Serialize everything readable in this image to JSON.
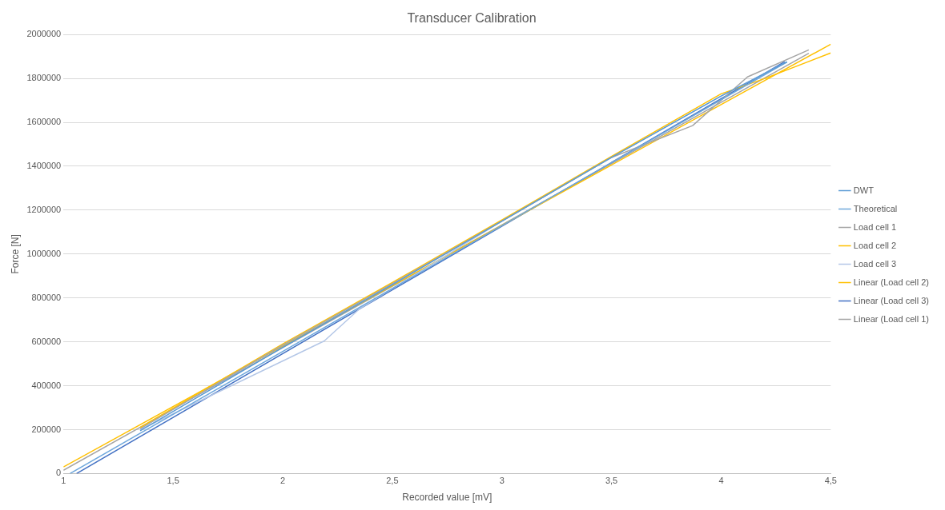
{
  "chart_data": {
    "type": "line",
    "title": "Transducer Calibration",
    "xlabel": "Recorded value [mV]",
    "ylabel": "Force [N]",
    "xlim": [
      1,
      4.5
    ],
    "xticks": [
      1,
      {
        "value": 1.5,
        "label": "1,5"
      },
      2,
      {
        "value": 2.5,
        "label": "2,5"
      },
      3,
      {
        "value": 3.5,
        "label": "3,5"
      },
      4,
      {
        "value": 4.5,
        "label": "4,5"
      }
    ],
    "ylim": [
      0,
      2000000
    ],
    "yticks": [
      0,
      200000,
      400000,
      600000,
      800000,
      1000000,
      1200000,
      1400000,
      1600000,
      1800000,
      2000000
    ],
    "grid": "y",
    "legend": "right",
    "marker": "none",
    "line_style": "solid",
    "series": [
      {
        "name": "DWT",
        "color": "#5b9bd5",
        "x": [
          1.35,
          2.0,
          2.5,
          3.0,
          3.5,
          4.0,
          4.3
        ],
        "values": [
          195000,
          575000,
          860000,
          1150000,
          1440000,
          1720000,
          1875000
        ]
      },
      {
        "name": "Theoretical",
        "color": "#6fa8dc",
        "x": [
          1.03,
          4.3
        ],
        "values": [
          0,
          1875000
        ]
      },
      {
        "name": "Load cell 1",
        "color": "#a5a5a5",
        "x": [
          1.35,
          2.0,
          2.5,
          3.0,
          3.5,
          3.87,
          4.12,
          4.4
        ],
        "values": [
          204000,
          585000,
          865000,
          1150000,
          1440000,
          1585000,
          1807000,
          1930000
        ]
      },
      {
        "name": "Load cell 2",
        "color": "#ffc000",
        "x": [
          1.35,
          2.0,
          2.5,
          3.0,
          3.5,
          4.0,
          4.2,
          4.5
        ],
        "values": [
          210000,
          590000,
          870000,
          1155000,
          1445000,
          1730000,
          1800000,
          1916000
        ]
      },
      {
        "name": "Load cell 3",
        "color": "#b4c7e7",
        "x": [
          1.35,
          2.19,
          2.35,
          3.0,
          3.5,
          4.0,
          4.3
        ],
        "values": [
          200000,
          604000,
          750000,
          1150000,
          1440000,
          1720000,
          1875000
        ]
      },
      {
        "name": "Linear (Load cell 2)",
        "color": "#ffc000",
        "x": [
          1,
          4.5
        ],
        "values": [
          30000,
          1956000
        ]
      },
      {
        "name": "Linear (Load cell 3)",
        "color": "#4472c4",
        "x": [
          1.06,
          4.29
        ],
        "values": [
          0,
          1876000
        ]
      },
      {
        "name": "Linear (Load cell 1)",
        "color": "#a5a5a5",
        "x": [
          1,
          4.4
        ],
        "values": [
          15000,
          1915000
        ]
      }
    ]
  }
}
